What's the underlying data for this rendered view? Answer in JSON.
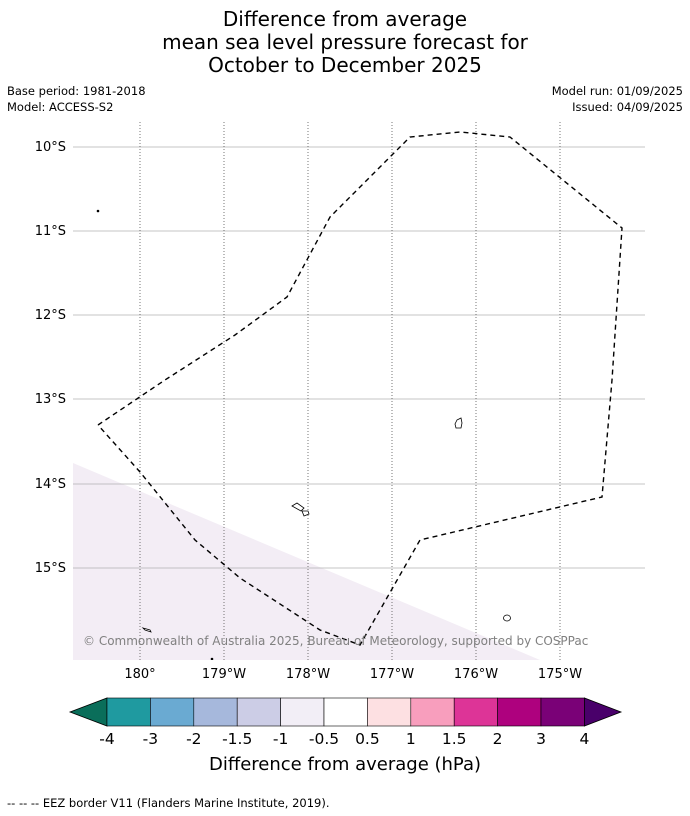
{
  "title": {
    "line1": "Difference from average",
    "line2": "mean sea level pressure forecast for",
    "line3": "October to December 2025"
  },
  "meta": {
    "base_period": "Base period: 1981-2018",
    "model": "Model: ACCESS-S2",
    "model_run": "Model run: 01/09/2025",
    "issued": "Issued: 04/09/2025"
  },
  "map": {
    "lat_labels": [
      "10°S",
      "11°S",
      "12°S",
      "13°S",
      "14°S",
      "15°S"
    ],
    "lon_labels": [
      "180°",
      "179°W",
      "178°W",
      "177°W",
      "176°W",
      "175°W"
    ],
    "copyright": "© Commonwealth of Australia 2025, Bureau of Meteorology, supported by COSPPac",
    "anomaly_fill_color": "#f3edf5"
  },
  "colorbar": {
    "title": "Difference from average (hPa)",
    "tick_labels": [
      "-4",
      "-3",
      "-2",
      "-1.5",
      "-1",
      "-0.5",
      "0.5",
      "1",
      "1.5",
      "2",
      "3",
      "4"
    ],
    "colors": [
      "#0a6e5a",
      "#1f9aa0",
      "#6aaad2",
      "#a6b8dc",
      "#cccde6",
      "#f2eef6",
      "#ffffff",
      "#fde0e2",
      "#f89ebd",
      "#dd3497",
      "#ae017e",
      "#7a0177",
      "#49006a"
    ]
  },
  "footer": {
    "eez_legend": "--  --  -- EEZ border V11 (Flanders Marine Institute, 2019)."
  }
}
